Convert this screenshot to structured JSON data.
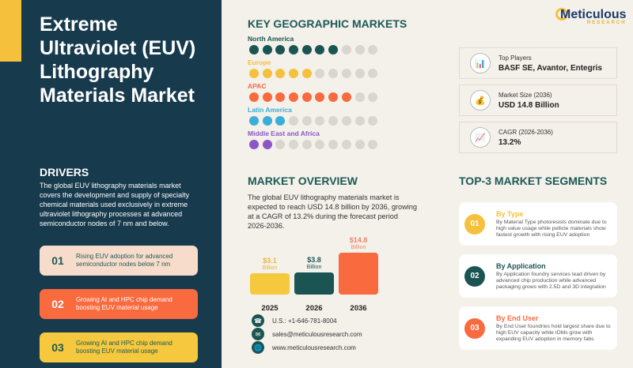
{
  "title": "Extreme Ultraviolet (EUV) Lithography Materials Market",
  "drivers": {
    "heading": "DRIVERS",
    "text": "The global EUV lithography materials market covers the development and supply of specialty chemical materials used exclusively in extreme ultraviolet lithography processes at advanced semiconductor nodes of 7 nm and below.",
    "items": [
      {
        "num": "01",
        "text": "Rising EUV adoption for advanced semiconductor nodes below 7 nm",
        "bg": "#f8dccb",
        "color": "#1d5a56"
      },
      {
        "num": "02",
        "text": "Growing AI and HPC chip demand boosting EUV material usage",
        "bg": "#f96a3f",
        "color": "#ffffff"
      },
      {
        "num": "03",
        "text": "Growing AI and HPC chip demand boosting EUV material usage",
        "bg": "#f5c83e",
        "color": "#1d5a56"
      }
    ]
  },
  "geo": {
    "heading": "KEY GEOGRAPHIC MARKETS",
    "regions": [
      {
        "name": "North America",
        "filled": 7,
        "total": 10,
        "color": "#1b5553"
      },
      {
        "name": "Europe",
        "filled": 5,
        "total": 10,
        "color": "#f5c13c"
      },
      {
        "name": "APAC",
        "filled": 8,
        "total": 10,
        "color": "#f96a3f"
      },
      {
        "name": "Latin America",
        "filled": 3,
        "total": 10,
        "color": "#3aaed8"
      },
      {
        "name": "Middle East and Africa",
        "filled": 2,
        "total": 10,
        "color": "#8b57c7"
      }
    ]
  },
  "logo": {
    "name": "Meticulous",
    "sub": "RESEARCH"
  },
  "key": [
    {
      "label": "Top Players",
      "value": "BASF SE, Avantor, Entegris",
      "icon": "chart-icon"
    },
    {
      "label": "Market Size (2036)",
      "value": "USD 14.8 Billion",
      "icon": "money-bag-icon"
    },
    {
      "label": "CAGR (2026-2036)",
      "value": "13.2%",
      "icon": "growth-chart-icon"
    }
  ],
  "overview": {
    "heading": "MARKET OVERVIEW",
    "text": "The global EUV lithography materials market is expected to reach USD 14.8 billion by 2036, growing at a CAGR of 13.2% during the forecast period 2026-2036."
  },
  "chart_data": {
    "type": "bar",
    "categories": [
      "2025",
      "2026",
      "2036"
    ],
    "values": [
      3.1,
      3.8,
      14.8
    ],
    "labels": [
      "$3.1",
      "$3.8",
      "$14.8"
    ],
    "unit": "Billion",
    "colors": [
      "#f5c83e",
      "#1b5553",
      "#f96a3f"
    ]
  },
  "contacts": [
    {
      "icon": "phone-icon",
      "text": "U.S.: +1-646-781-8004"
    },
    {
      "icon": "email-icon",
      "text": "sales@meticulousresearch.com"
    },
    {
      "icon": "globe-icon",
      "text": "www.meticulousresearch.com"
    }
  ],
  "segments": {
    "heading": "TOP-3 MARKET SEGMENTS",
    "items": [
      {
        "num": "01",
        "title": "By Type",
        "text": "By Material Type photoresists dominate due to high value usage while pellicle materials show fastest growth with rising EUV adoption",
        "color": "#f5c13c"
      },
      {
        "num": "02",
        "title": "By Application",
        "text": "By Application foundry services lead driven by advanced chip production while advanced packaging grows with 2.5D and 3D integration",
        "color": "#1b5553"
      },
      {
        "num": "03",
        "title": "By End User",
        "text": "By End User foundries hold largest share due to high EUV capacity while IDMs grow with expanding EUV adoption in memory fabs",
        "color": "#f96a3f"
      }
    ]
  }
}
